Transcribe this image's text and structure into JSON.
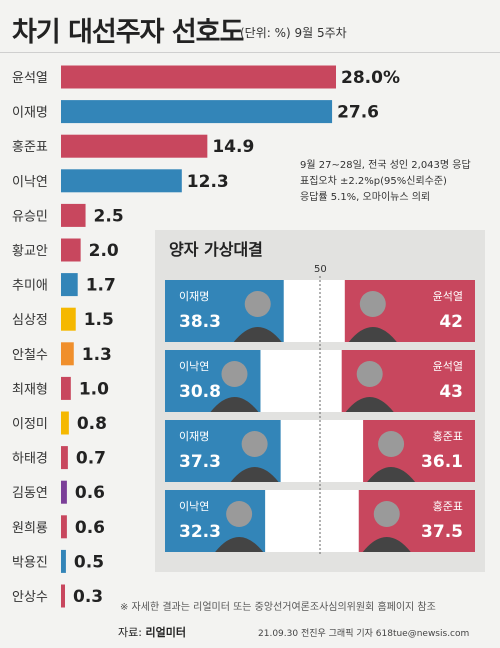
{
  "header": {
    "title": "차기 대선주자 선호도",
    "unit": "(단위: %) 9월 5주차"
  },
  "chart_data": [
    {
      "type": "bar",
      "orientation": "horizontal",
      "categories": [
        "윤석열",
        "이재명",
        "홍준표",
        "이낙연",
        "유승민",
        "황교안",
        "추미애",
        "심상정",
        "안철수",
        "최재형",
        "이정미",
        "하태경",
        "김동연",
        "원희룡",
        "박용진",
        "안상수"
      ],
      "values": [
        28.0,
        27.6,
        14.9,
        12.3,
        2.5,
        2.0,
        1.7,
        1.5,
        1.3,
        1.0,
        0.8,
        0.7,
        0.6,
        0.6,
        0.5,
        0.3
      ],
      "value_labels": [
        "28.0%",
        "27.6",
        "14.9",
        "12.3",
        "2.5",
        "2.0",
        "1.7",
        "1.5",
        "1.3",
        "1.0",
        "0.8",
        "0.7",
        "0.6",
        "0.6",
        "0.5",
        "0.3"
      ],
      "colors": [
        "#c8475e",
        "#3385b8",
        "#c8475e",
        "#3385b8",
        "#c8475e",
        "#c8475e",
        "#3385b8",
        "#f5b800",
        "#f08f2c",
        "#c8475e",
        "#f5b800",
        "#c8475e",
        "#7b3f98",
        "#c8475e",
        "#3385b8",
        "#c8475e"
      ],
      "title": "차기 대선주자 선호도",
      "unit": "%"
    },
    {
      "type": "bar",
      "orientation": "horizontal-stacked",
      "title": "양자 가상대결",
      "reference_line": 50,
      "reference_label": "50",
      "matchups": [
        {
          "left_name": "이재명",
          "left_value": 38.3,
          "left_label": "38.3",
          "right_name": "윤석열",
          "right_value": 42,
          "right_label": "42"
        },
        {
          "left_name": "이낙연",
          "left_value": 30.8,
          "left_label": "30.8",
          "right_name": "윤석열",
          "right_value": 43,
          "right_label": "43"
        },
        {
          "left_name": "이재명",
          "left_value": 37.3,
          "left_label": "37.3",
          "right_name": "홍준표",
          "right_value": 36.1,
          "right_label": "36.1"
        },
        {
          "left_name": "이낙연",
          "left_value": 32.3,
          "left_label": "32.3",
          "right_name": "홍준표",
          "right_value": 37.5,
          "right_label": "37.5"
        }
      ],
      "left_color": "#3385b8",
      "right_color": "#c8475e"
    }
  ],
  "survey_note": [
    "9월 27~28일, 전국 성인 2,043명 응답",
    "표집오차 ±2.2%p(95%신뢰수준)",
    "응답률 5.1%, 오마이뉴스 의뢰"
  ],
  "footnote": "※ 자세한 결과는 리얼미터 또는 중앙선거여론조사심의위원회 홈페이지 참조",
  "source": {
    "label": "자료:",
    "name": "리얼미터"
  },
  "credit": "21.09.30 전진우 그래픽 기자 618tue@newsis.com"
}
